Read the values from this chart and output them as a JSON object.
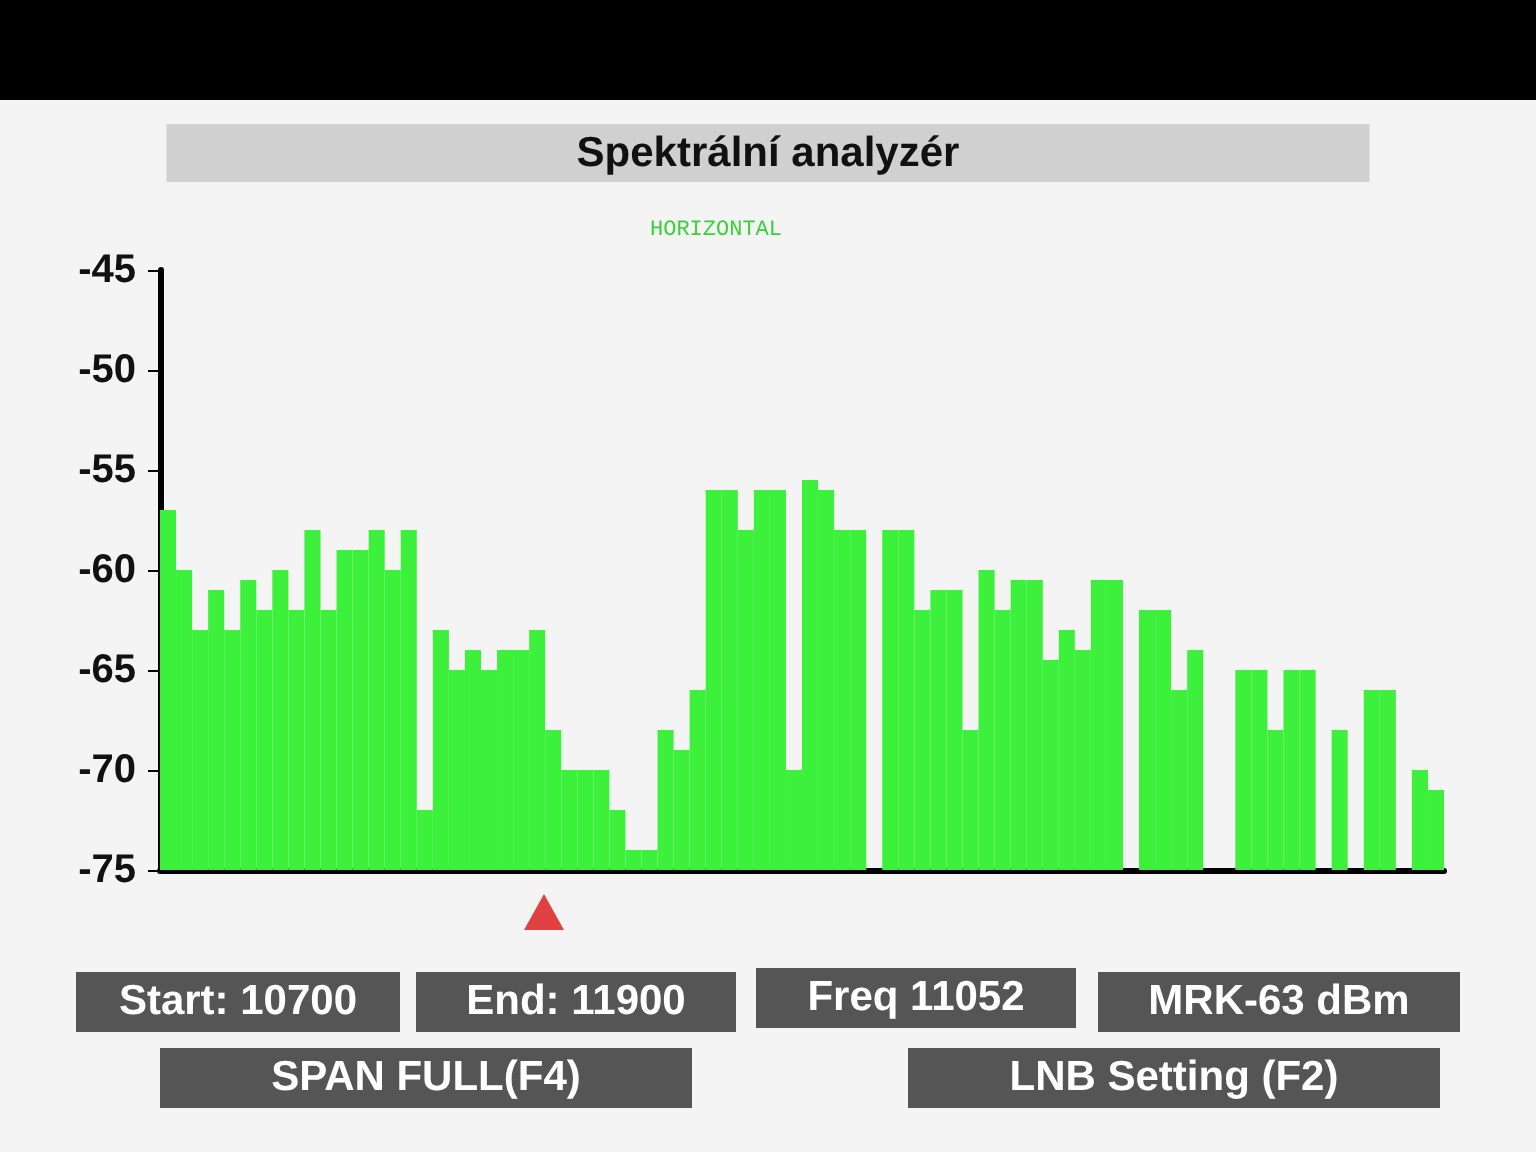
{
  "chart_data": {
    "type": "bar",
    "title": "Spektrální analyzér",
    "categories": [
      null,
      null,
      null,
      null,
      null,
      null,
      null,
      null,
      null,
      null,
      null,
      null,
      null,
      null,
      null,
      null,
      null,
      null,
      null,
      null,
      null,
      null,
      null,
      null,
      null,
      null,
      null,
      null,
      null,
      null,
      null,
      null,
      null,
      null,
      null,
      null,
      null,
      null,
      null,
      null,
      null,
      null,
      null,
      null,
      null,
      null,
      null,
      null,
      null,
      null,
      null,
      null,
      null,
      null,
      null,
      null,
      null,
      null,
      null,
      null,
      null,
      null,
      null,
      null,
      null,
      null,
      null,
      null,
      null,
      null,
      null,
      null,
      null,
      null,
      null,
      null,
      null,
      null,
      null,
      null
    ],
    "base": [
      -75,
      -75,
      -75,
      -75,
      -75,
      -75,
      -75,
      -75,
      -75,
      -75,
      -75,
      -75,
      -75,
      -75,
      -75,
      -75,
      -75,
      -75,
      -75,
      -75,
      -75,
      -75,
      -75,
      -75,
      -75,
      -75,
      -75,
      -75,
      -75,
      -75,
      -75,
      -75,
      -75,
      -75,
      -75,
      -75,
      -75,
      -75,
      -75,
      -75,
      -75,
      -75,
      -75,
      -75,
      null,
      -75,
      -75,
      -75,
      -75,
      -75,
      -75,
      -75,
      -75,
      -75,
      -75,
      -75,
      -75,
      -75,
      -75,
      -75,
      null,
      -75,
      -75,
      -75,
      -75,
      null,
      null,
      -75,
      -75,
      -75,
      -75,
      -75,
      null,
      -75,
      null,
      -75,
      -75,
      null,
      -75,
      -75
    ],
    "values": [
      18,
      15,
      12,
      14,
      12,
      14.5,
      13,
      15,
      13,
      17,
      13,
      16,
      16,
      17,
      15,
      17,
      3,
      12,
      10,
      11,
      10,
      11,
      11,
      12,
      7,
      5,
      5,
      5,
      3,
      1,
      1,
      7,
      6,
      9,
      19,
      19,
      17,
      19,
      19,
      5,
      19.5,
      19,
      17,
      17,
      null,
      17,
      17,
      13,
      14,
      14,
      7,
      15,
      13,
      14.5,
      14.5,
      10.5,
      12,
      11,
      14.5,
      14.5,
      null,
      13,
      13,
      9,
      11,
      null,
      null,
      10,
      10,
      7,
      10,
      10,
      null,
      7,
      null,
      9,
      9,
      null,
      5,
      4
    ],
    "color": "#3cf03c",
    "ylim": [
      -75,
      -45
    ],
    "yticks": [
      -75,
      -70,
      -65,
      -60,
      -55,
      -50,
      -45
    ],
    "tick_labels": "y",
    "grid": false,
    "annotations": [
      "HORIZONTAL",
      "Start: 10700",
      "End: 11900",
      "Freq 11052",
      "MRK-63 dBm",
      "SPAN FULL(F4)",
      "LNB Setting (F2)"
    ]
  }
}
